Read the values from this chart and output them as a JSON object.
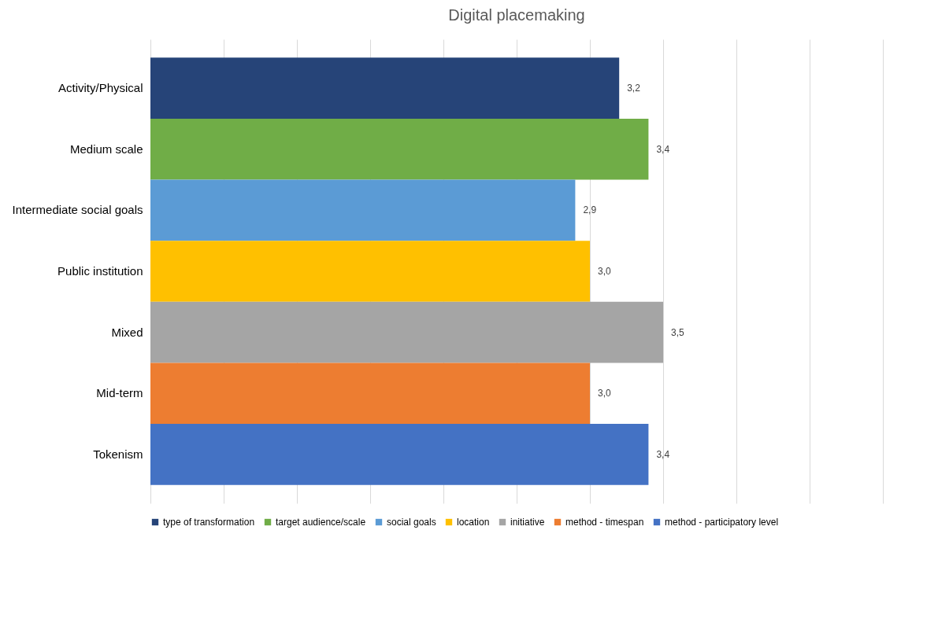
{
  "chart_data": {
    "type": "bar",
    "orientation": "horizontal",
    "title": "Digital placemaking",
    "categories": [
      "Activity/Physical",
      "Medium scale",
      "Intermediate social goals",
      "Public institution",
      "Mixed",
      "Mid-term",
      "Tokenism"
    ],
    "series": [
      {
        "name": "type of transformation",
        "color": "#264478",
        "values": [
          3.2,
          null,
          null,
          null,
          null,
          null,
          null
        ],
        "value_labels": [
          "3,2",
          null,
          null,
          null,
          null,
          null,
          null
        ]
      },
      {
        "name": "target audience/scale",
        "color": "#70ad47",
        "values": [
          null,
          3.4,
          null,
          null,
          null,
          null,
          null
        ],
        "value_labels": [
          null,
          "3,4",
          null,
          null,
          null,
          null,
          null
        ]
      },
      {
        "name": "social goals",
        "color": "#5b9bd5",
        "values": [
          null,
          null,
          2.9,
          null,
          null,
          null,
          null
        ],
        "value_labels": [
          null,
          null,
          "2,9",
          null,
          null,
          null,
          null
        ]
      },
      {
        "name": "location",
        "color": "#ffc000",
        "values": [
          null,
          null,
          null,
          3.0,
          null,
          null,
          null
        ],
        "value_labels": [
          null,
          null,
          null,
          "3,0",
          null,
          null,
          null
        ]
      },
      {
        "name": "initiative",
        "color": "#a5a5a5",
        "values": [
          null,
          null,
          null,
          null,
          3.5,
          null,
          null
        ],
        "value_labels": [
          null,
          null,
          null,
          null,
          "3,5",
          null,
          null
        ]
      },
      {
        "name": "method - timespan",
        "color": "#ed7d31",
        "values": [
          null,
          null,
          null,
          null,
          null,
          3.0,
          null
        ],
        "value_labels": [
          null,
          null,
          null,
          null,
          null,
          "3,0",
          null
        ]
      },
      {
        "name": "method - participatory level",
        "color": "#4472c4",
        "values": [
          null,
          null,
          null,
          null,
          null,
          null,
          3.4
        ],
        "value_labels": [
          null,
          null,
          null,
          null,
          null,
          null,
          "3,4"
        ]
      }
    ],
    "xlim": [
      0,
      5
    ],
    "xticks": [
      {
        "value": 0,
        "label": null
      },
      {
        "value": 0.5,
        "label": null
      },
      {
        "value": 1,
        "label": null
      },
      {
        "value": 1.5,
        "label": null
      },
      {
        "value": 2,
        "label": null
      },
      {
        "value": 2.5,
        "label": null
      },
      {
        "value": 3,
        "label": null
      },
      {
        "value": 3.5,
        "label": null
      },
      {
        "value": 4,
        "label": null
      },
      {
        "value": 4.5,
        "label": null
      },
      {
        "value": 5,
        "label": null
      }
    ],
    "tick_labels": "y",
    "grid": "x",
    "legend": "bottom"
  }
}
